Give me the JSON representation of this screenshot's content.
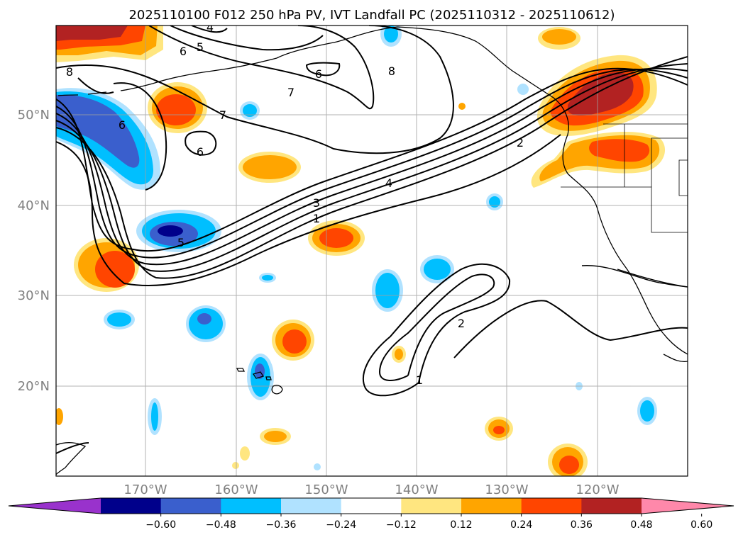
{
  "title": "2025110100 F012 250 hPa PV, IVT Landfall PC (2025110312 - 2025110612)",
  "map": {
    "lat_range": [
      10,
      60
    ],
    "lon_range": [
      -180,
      -110
    ],
    "lat_labels": [
      "50°N",
      "40°N",
      "30°N",
      "20°N"
    ],
    "lon_labels": [
      "170°W",
      "160°W",
      "150°W",
      "140°W",
      "130°W",
      "120°W"
    ],
    "contour_labels": [
      "4",
      "5",
      "6",
      "6",
      "8",
      "8",
      "7",
      "7",
      "6",
      "6",
      "5",
      "4",
      "3",
      "2",
      "1",
      "2",
      "1"
    ]
  },
  "colorbar": {
    "ticks": [
      "−0.60",
      "−0.48",
      "−0.36",
      "−0.24",
      "−0.12",
      "0.12",
      "0.24",
      "0.36",
      "0.48",
      "0.60"
    ],
    "colors": [
      "#9932cc",
      "#00008b",
      "#3a5fcd",
      "#00bfff",
      "#b0e2ff",
      "#ffffff",
      "#ffe680",
      "#ffa500",
      "#ff4500",
      "#b22222",
      "#ff88aa"
    ]
  }
}
